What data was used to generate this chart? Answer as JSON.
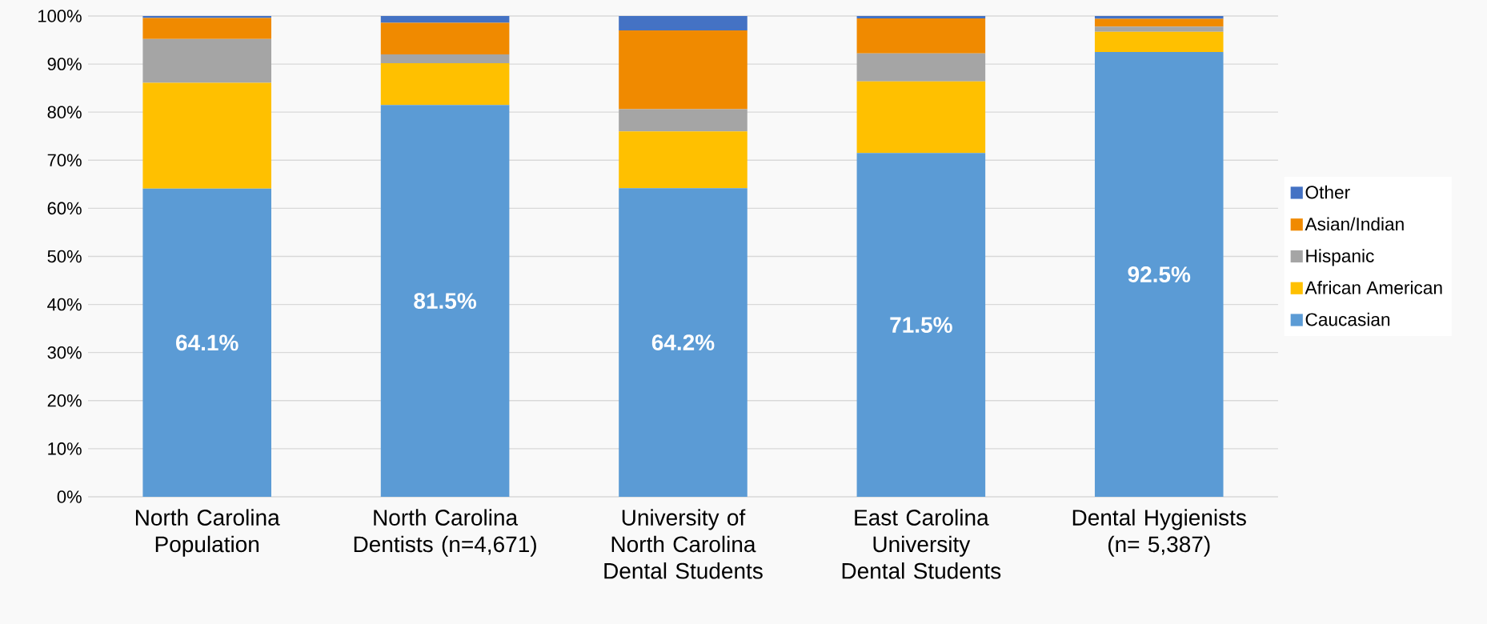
{
  "chart_data": {
    "type": "bar",
    "stacked": true,
    "categories": [
      "North Carolina Population",
      "North Carolina Dentists (n=4,671)",
      "University of North Carolina Dental Students",
      "East Carolina University Dental Students",
      "Dental Hygienists (n= 5,387)"
    ],
    "series": [
      {
        "name": "Caucasian",
        "color": "#5b9bd5",
        "values": [
          64.1,
          81.5,
          64.2,
          71.5,
          92.5
        ],
        "value_labels": [
          "64.1%",
          "81.5%",
          "64.2%",
          "71.5%",
          "92.5%"
        ]
      },
      {
        "name": "African American",
        "color": "#ffc000",
        "values": [
          22.0,
          8.7,
          11.8,
          14.9,
          4.2
        ]
      },
      {
        "name": "Hispanic",
        "color": "#a5a5a5",
        "values": [
          9.1,
          1.8,
          4.6,
          5.8,
          1.1
        ]
      },
      {
        "name": "Asian/Indian",
        "color": "#f08a00",
        "values": [
          4.4,
          6.6,
          16.4,
          7.3,
          1.6
        ]
      },
      {
        "name": "Other",
        "color": "#4472c4",
        "values": [
          0.4,
          1.4,
          3.0,
          0.5,
          0.6
        ]
      }
    ],
    "ylim": [
      0,
      100
    ],
    "yticks": [
      {
        "value": 0,
        "label": "0%"
      },
      {
        "value": 10,
        "label": "10%"
      },
      {
        "value": 20,
        "label": "20%"
      },
      {
        "value": 30,
        "label": "30%"
      },
      {
        "value": 40,
        "label": "40%"
      },
      {
        "value": 50,
        "label": "50%"
      },
      {
        "value": 60,
        "label": "60%"
      },
      {
        "value": 70,
        "label": "70%"
      },
      {
        "value": 80,
        "label": "80%"
      },
      {
        "value": 90,
        "label": "90%"
      },
      {
        "value": 100,
        "label": "100%"
      }
    ],
    "grid": "y",
    "legend": "right"
  }
}
